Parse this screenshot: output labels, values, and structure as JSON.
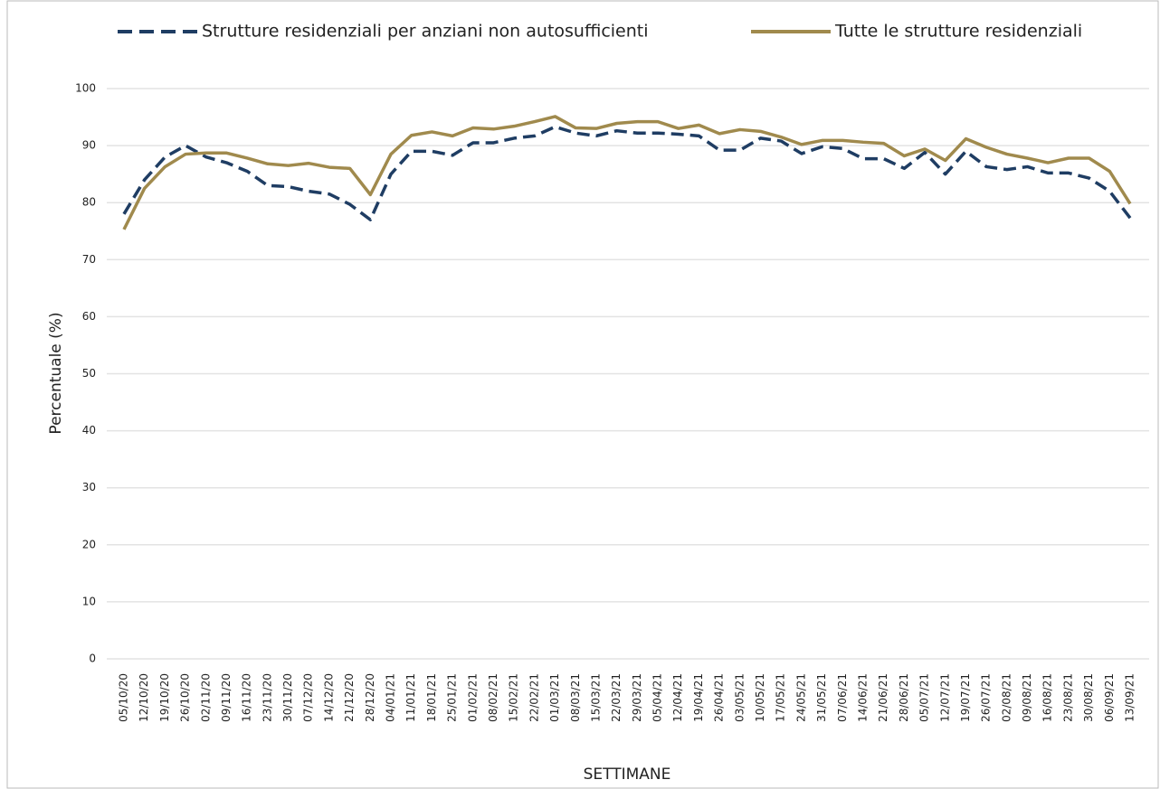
{
  "chart_data": {
    "type": "line",
    "x_label": "SETTIMANE",
    "y_label": "Percentuale (%)",
    "categories": [
      "05/10/20",
      "12/10/20",
      "19/10/20",
      "26/10/20",
      "02/11/20",
      "09/11/20",
      "16/11/20",
      "23/11/20",
      "30/11/20",
      "07/12/20",
      "14/12/20",
      "21/12/20",
      "28/12/20",
      "04/01/21",
      "11/01/21",
      "18/01/21",
      "25/01/21",
      "01/02/21",
      "08/02/21",
      "15/02/21",
      "22/02/21",
      "01/03/21",
      "08/03/21",
      "15/03/21",
      "22/03/21",
      "29/03/21",
      "05/04/21",
      "12/04/21",
      "19/04/21",
      "26/04/21",
      "03/05/21",
      "10/05/21",
      "17/05/21",
      "24/05/21",
      "31/05/21",
      "07/06/21",
      "14/06/21",
      "21/06/21",
      "28/06/21",
      "05/07/21",
      "12/07/21",
      "19/07/21",
      "26/07/21",
      "02/08/21",
      "09/08/21",
      "16/08/21",
      "23/08/21",
      "30/08/21",
      "06/09/21",
      "13/09/21"
    ],
    "series": [
      {
        "name": "Strutture residenziali per anziani non autosufficienti",
        "color": "#1f3d63",
        "dashed": true,
        "values": [
          78,
          84,
          88,
          90,
          88,
          87,
          85.5,
          83,
          82.8,
          82,
          81.5,
          79.7,
          77,
          85,
          89,
          89,
          88.3,
          90.5,
          90.5,
          91.3,
          91.7,
          93.3,
          92.2,
          91.7,
          92.6,
          92.2,
          92.2,
          92,
          91.7,
          89.2,
          89.2,
          91.3,
          90.8,
          88.6,
          89.8,
          89.5,
          87.7,
          87.7,
          86,
          88.8,
          85,
          89,
          86.3,
          85.8,
          86.3,
          85.2,
          85.2,
          84.3,
          82,
          77.3
        ]
      },
      {
        "name": "Tutte le strutture residenziali",
        "color": "#a08a4d",
        "dashed": false,
        "values": [
          75.3,
          82.5,
          86.3,
          88.5,
          88.7,
          88.7,
          87.8,
          86.8,
          86.5,
          86.9,
          86.2,
          86,
          81.4,
          88.5,
          91.8,
          92.4,
          91.7,
          93.1,
          92.9,
          93.4,
          94.2,
          95.1,
          93.1,
          93,
          93.9,
          94.2,
          94.2,
          93,
          93.6,
          92.1,
          92.8,
          92.5,
          91.5,
          90.2,
          90.9,
          90.9,
          90.6,
          90.4,
          88.2,
          89.4,
          87.4,
          91.2,
          89.7,
          88.5,
          87.8,
          87,
          87.8,
          87.8,
          85.5,
          79.8
        ]
      }
    ],
    "ylim": [
      0,
      100
    ],
    "yticks": [
      0,
      10,
      20,
      30,
      40,
      50,
      60,
      70,
      80,
      90,
      100
    ],
    "grid": true,
    "legend": "top"
  }
}
